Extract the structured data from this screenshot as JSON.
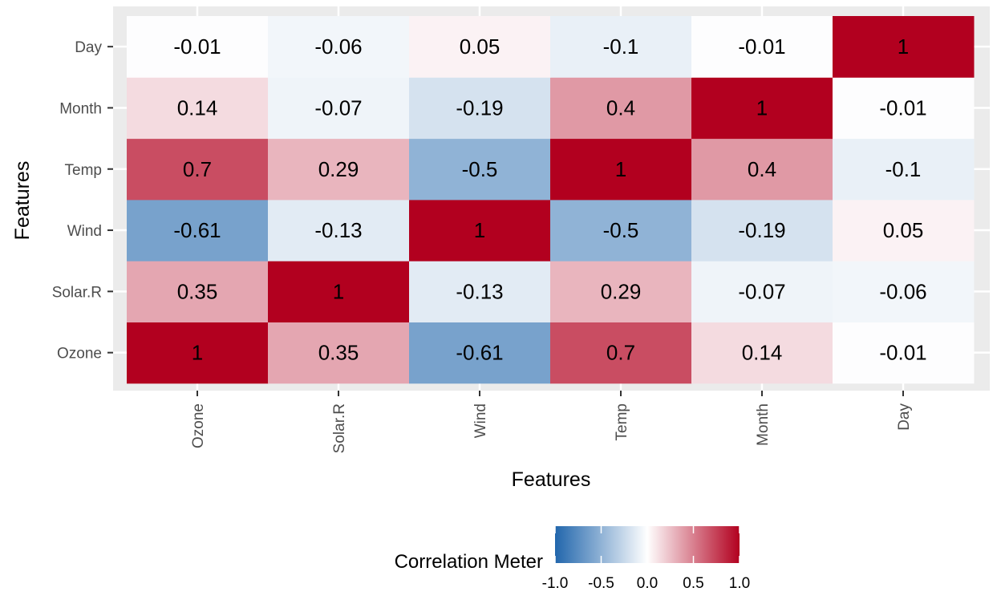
{
  "chart_data": {
    "type": "heatmap",
    "x_categories": [
      "Ozone",
      "Solar.R",
      "Wind",
      "Temp",
      "Month",
      "Day"
    ],
    "y_categories": [
      "Ozone",
      "Solar.R",
      "Wind",
      "Temp",
      "Month",
      "Day"
    ],
    "matrix": [
      [
        1,
        0.35,
        -0.61,
        0.7,
        0.14,
        -0.01
      ],
      [
        0.35,
        1,
        -0.13,
        0.29,
        -0.07,
        -0.06
      ],
      [
        -0.61,
        -0.13,
        1,
        -0.5,
        -0.19,
        0.05
      ],
      [
        0.7,
        0.29,
        -0.5,
        1,
        0.4,
        -0.1
      ],
      [
        0.14,
        -0.07,
        -0.19,
        0.4,
        1,
        -0.01
      ],
      [
        -0.01,
        -0.06,
        0.05,
        -0.1,
        -0.01,
        1
      ]
    ],
    "xlabel": "Features",
    "ylabel": "Features",
    "legend": {
      "title": "Correlation Meter",
      "ticks": [
        "-1.0",
        "-0.5",
        "0.0",
        "0.5",
        "1.0"
      ],
      "range": [
        -1,
        1
      ],
      "low_color": "#2166ac",
      "mid_color": "#ffffff",
      "high_color": "#b2001f",
      "placement": "bottom"
    },
    "panel_background": "#ebebeb",
    "grid_color": "#ffffff"
  }
}
